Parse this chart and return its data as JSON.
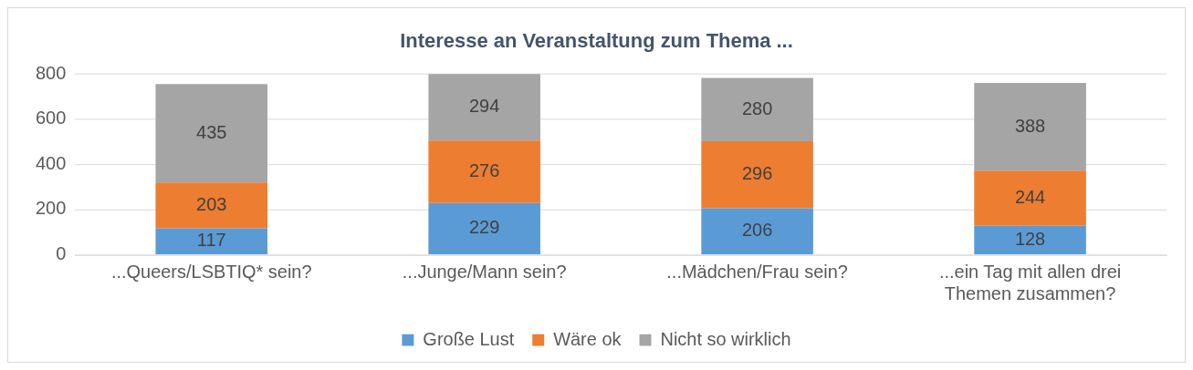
{
  "chart_data": {
    "type": "bar",
    "title": "Interesse an Veranstaltung zum Thema ...",
    "categories": [
      "...Queers/LSBTIQ* sein?",
      "...Junge/Mann sein?",
      "...Mädchen/Frau sein?",
      "...ein Tag mit allen drei Themen zusammen?"
    ],
    "series": [
      {
        "name": "Große Lust",
        "color": "#5b9bd5",
        "values": [
          117,
          229,
          206,
          128
        ]
      },
      {
        "name": "Wäre ok",
        "color": "#ed7d31",
        "values": [
          203,
          276,
          296,
          244
        ]
      },
      {
        "name": "Nicht so wirklich",
        "color": "#a5a5a5",
        "values": [
          435,
          294,
          280,
          388
        ]
      }
    ],
    "stacked": true,
    "ylim": [
      0,
      800
    ],
    "yticks": [
      0,
      200,
      400,
      600,
      800
    ],
    "grid": "y",
    "legend": "bottom",
    "data_labels": true
  }
}
